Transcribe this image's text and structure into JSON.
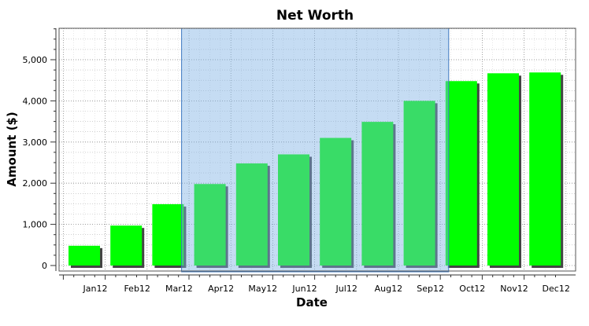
{
  "chart_data": {
    "type": "bar",
    "title": "Net Worth",
    "xlabel": "Date",
    "ylabel": "Amount ($)",
    "categories": [
      "Jan12",
      "Feb12",
      "Mar12",
      "Apr12",
      "May12",
      "Jun12",
      "Jul12",
      "Aug12",
      "Sep12",
      "Oct12",
      "Nov12",
      "Dec12"
    ],
    "values": [
      480,
      970,
      1490,
      1980,
      2480,
      2700,
      3100,
      3490,
      4000,
      4480,
      4670,
      4690
    ],
    "ylim": [
      0,
      5700
    ],
    "yticks": [
      0,
      1000,
      2000,
      3000,
      4000,
      5000
    ],
    "ytick_labels": [
      "0",
      "1,000",
      "2,000",
      "3,000",
      "4,000",
      "5,000"
    ],
    "grid": true,
    "bar_color": "#00ff00",
    "selection": {
      "from": "Apr12",
      "to": "Oct12",
      "color": "#7fb2e5"
    }
  }
}
